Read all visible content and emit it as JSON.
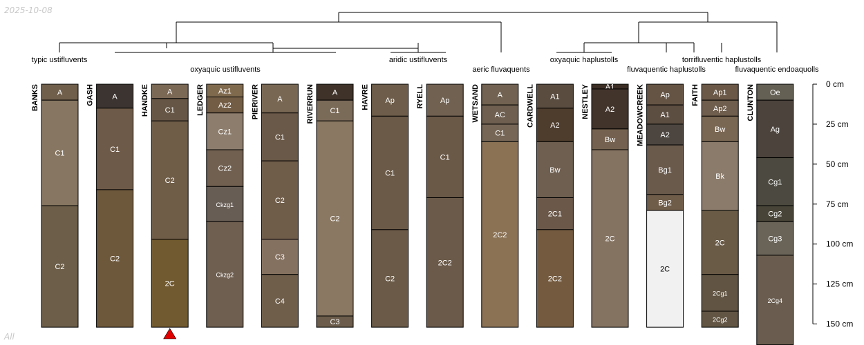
{
  "stamp_top": "2025-10-08",
  "stamp_bottom": "All",
  "depth_axis": {
    "unit": "cm",
    "ticks": [
      {
        "value": 0,
        "label": "0 cm"
      },
      {
        "value": 25,
        "label": "25 cm"
      },
      {
        "value": 50,
        "label": "50 cm"
      },
      {
        "value": 75,
        "label": "75 cm"
      },
      {
        "value": 100,
        "label": "100 cm"
      },
      {
        "value": 125,
        "label": "125 cm"
      },
      {
        "value": 150,
        "label": "150 cm"
      }
    ]
  },
  "group_labels": [
    "typic ustifluvents",
    "oxyaquic ustifluvents",
    "aridic ustifluvents",
    "aeric fluvaquents",
    "oxyaquic haplustolls",
    "fluvaquentic haplustolls",
    "torrifluventic haplustolls",
    "fluvaquentic endoaquolls"
  ],
  "marker": {
    "profile": "HANDKE",
    "color": "#e00000"
  },
  "profiles": [
    {
      "name": "BANKS",
      "horizons": [
        {
          "name": "A",
          "top": 0,
          "bottom": 10,
          "color": "#6f5f4b"
        },
        {
          "name": "C1",
          "top": 10,
          "bottom": 76,
          "color": "#877762"
        },
        {
          "name": "C2",
          "top": 76,
          "bottom": 152,
          "color": "#6d5e49"
        }
      ]
    },
    {
      "name": "GASH",
      "horizons": [
        {
          "name": "A",
          "top": 0,
          "bottom": 15,
          "color": "#3c3430"
        },
        {
          "name": "C1",
          "top": 15,
          "bottom": 66,
          "color": "#6e5a48"
        },
        {
          "name": "C2",
          "top": 66,
          "bottom": 152,
          "color": "#6e583b"
        }
      ]
    },
    {
      "name": "HANDKE",
      "horizons": [
        {
          "name": "A",
          "top": 0,
          "bottom": 9,
          "color": "#7b6855"
        },
        {
          "name": "C1",
          "top": 9,
          "bottom": 23,
          "color": "#665645"
        },
        {
          "name": "C2",
          "top": 23,
          "bottom": 97,
          "color": "#6f5d48"
        },
        {
          "name": "2C",
          "top": 97,
          "bottom": 152,
          "color": "#725a30"
        }
      ]
    },
    {
      "name": "LEDGER",
      "horizons": [
        {
          "name": "Az1",
          "top": 0,
          "bottom": 8,
          "color": "#806a4e"
        },
        {
          "name": "Az2",
          "top": 8,
          "bottom": 18,
          "color": "#735d45"
        },
        {
          "name": "Cz1",
          "top": 18,
          "bottom": 41,
          "color": "#8d7d6d"
        },
        {
          "name": "Cz2",
          "top": 41,
          "bottom": 64,
          "color": "#716050"
        },
        {
          "name": "Ckzg1",
          "top": 64,
          "bottom": 86,
          "color": "#675d55"
        },
        {
          "name": "Ckzg2",
          "top": 86,
          "bottom": 152,
          "color": "#6f5f50"
        }
      ]
    },
    {
      "name": "PIERIVER",
      "horizons": [
        {
          "name": "A",
          "top": 0,
          "bottom": 18,
          "color": "#786753"
        },
        {
          "name": "C1",
          "top": 18,
          "bottom": 48,
          "color": "#6a5848"
        },
        {
          "name": "C2",
          "top": 48,
          "bottom": 97,
          "color": "#6f5d4a"
        },
        {
          "name": "C3",
          "top": 97,
          "bottom": 119,
          "color": "#857160"
        },
        {
          "name": "C4",
          "top": 119,
          "bottom": 152,
          "color": "#6f5e4a"
        }
      ]
    },
    {
      "name": "RIVERRUN",
      "horizons": [
        {
          "name": "A",
          "top": 0,
          "bottom": 10,
          "color": "#3f3229"
        },
        {
          "name": "C1",
          "top": 10,
          "bottom": 23,
          "color": "#7a6a58"
        },
        {
          "name": "C2",
          "top": 23,
          "bottom": 145,
          "color": "#8b7862"
        },
        {
          "name": "C3",
          "top": 145,
          "bottom": 152,
          "color": "#6b5c4b"
        }
      ]
    },
    {
      "name": "HAVRE",
      "horizons": [
        {
          "name": "Ap",
          "top": 0,
          "bottom": 20,
          "color": "#6d5d4a"
        },
        {
          "name": "C1",
          "top": 20,
          "bottom": 91,
          "color": "#6b5a48"
        },
        {
          "name": "C2",
          "top": 91,
          "bottom": 152,
          "color": "#6a5a47"
        }
      ]
    },
    {
      "name": "RYELL",
      "horizons": [
        {
          "name": "Ap",
          "top": 0,
          "bottom": 20,
          "color": "#716150"
        },
        {
          "name": "C1",
          "top": 20,
          "bottom": 71,
          "color": "#6b5948"
        },
        {
          "name": "2C2",
          "top": 71,
          "bottom": 152,
          "color": "#6b5a49"
        }
      ]
    },
    {
      "name": "WETSAND",
      "horizons": [
        {
          "name": "A",
          "top": 0,
          "bottom": 13,
          "color": "#716251"
        },
        {
          "name": "AC",
          "top": 13,
          "bottom": 25,
          "color": "#6e5f50"
        },
        {
          "name": "C1",
          "top": 25,
          "bottom": 36,
          "color": "#766656"
        },
        {
          "name": "2C2",
          "top": 36,
          "bottom": 152,
          "color": "#8b7255"
        }
      ]
    },
    {
      "name": "CARDWELL",
      "horizons": [
        {
          "name": "A1",
          "top": 0,
          "bottom": 15,
          "color": "#5a4d40"
        },
        {
          "name": "A2",
          "top": 15,
          "bottom": 36,
          "color": "#4e3c2c"
        },
        {
          "name": "Bw",
          "top": 36,
          "bottom": 71,
          "color": "#6e5f50"
        },
        {
          "name": "2C1",
          "top": 71,
          "bottom": 91,
          "color": "#6b5849"
        },
        {
          "name": "2C2",
          "top": 91,
          "bottom": 152,
          "color": "#745b40"
        }
      ]
    },
    {
      "name": "NESTLEY",
      "horizons": [
        {
          "name": "A1",
          "top": 0,
          "bottom": 3,
          "color": "#3c2e24"
        },
        {
          "name": "A2",
          "top": 3,
          "bottom": 28,
          "color": "#42342b"
        },
        {
          "name": "Bw",
          "top": 28,
          "bottom": 41,
          "color": "#74614f"
        },
        {
          "name": "2C",
          "top": 41,
          "bottom": 152,
          "color": "#857362"
        }
      ]
    },
    {
      "name": "MEADOWCREEK",
      "horizons": [
        {
          "name": "Ap",
          "top": 0,
          "bottom": 13,
          "color": "#655444"
        },
        {
          "name": "A1",
          "top": 13,
          "bottom": 25,
          "color": "#5d4e42"
        },
        {
          "name": "A2",
          "top": 25,
          "bottom": 38,
          "color": "#4c4540"
        },
        {
          "name": "Bg1",
          "top": 38,
          "bottom": 69,
          "color": "#6a5a4c"
        },
        {
          "name": "Bg2",
          "top": 69,
          "bottom": 79,
          "color": "#6f5c49"
        },
        {
          "name": "2C",
          "top": 79,
          "bottom": 152,
          "color": "#f1f1f1"
        }
      ]
    },
    {
      "name": "FAITH",
      "horizons": [
        {
          "name": "Ap1",
          "top": 0,
          "bottom": 10,
          "color": "#6b5847"
        },
        {
          "name": "Ap2",
          "top": 10,
          "bottom": 20,
          "color": "#6f5e4d"
        },
        {
          "name": "Bw",
          "top": 20,
          "bottom": 36,
          "color": "#7a6753"
        },
        {
          "name": "Bk",
          "top": 36,
          "bottom": 79,
          "color": "#8b7b6b"
        },
        {
          "name": "2C",
          "top": 79,
          "bottom": 119,
          "color": "#6a5b47"
        },
        {
          "name": "2Cg1",
          "top": 119,
          "bottom": 142,
          "color": "#615442"
        },
        {
          "name": "2Cg2",
          "top": 142,
          "bottom": 152,
          "color": "#625543"
        }
      ]
    },
    {
      "name": "CLUNTON",
      "horizons": [
        {
          "name": "Oe",
          "top": 0,
          "bottom": 10,
          "color": "#646054"
        },
        {
          "name": "Ag",
          "top": 10,
          "bottom": 46,
          "color": "#4b433c"
        },
        {
          "name": "Cg1",
          "top": 46,
          "bottom": 76,
          "color": "#4c4a40"
        },
        {
          "name": "Cg2",
          "top": 76,
          "bottom": 86,
          "color": "#484538"
        },
        {
          "name": "Cg3",
          "top": 86,
          "bottom": 107,
          "color": "#6a6458"
        },
        {
          "name": "2Cg4",
          "top": 107,
          "bottom": 163,
          "color": "#6a5d4f"
        }
      ]
    }
  ]
}
